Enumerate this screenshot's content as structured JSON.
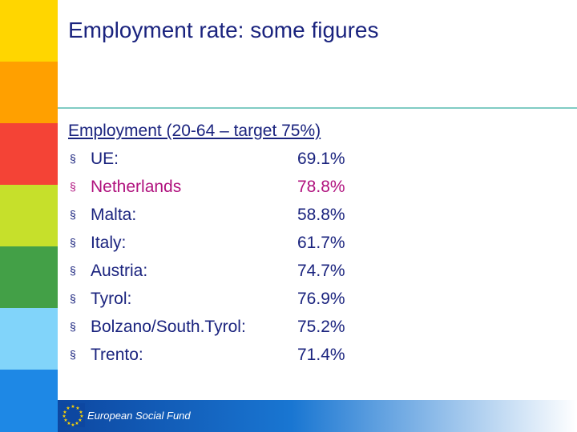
{
  "slide": {
    "title": "Employment rate: some figures",
    "heading": "Employment (20-64 – target 75%)",
    "bullet_glyph": "§",
    "items": [
      {
        "name": "UE:",
        "value": "69.1%",
        "highlight": false
      },
      {
        "name": "Netherlands",
        "value": "78.8%",
        "highlight": true
      },
      {
        "name": "Malta:",
        "value": "58.8%",
        "highlight": false
      },
      {
        "name": "Italy:",
        "value": "61.7%",
        "highlight": false
      },
      {
        "name": "Austria:",
        "value": "74.7%",
        "highlight": false
      },
      {
        "name": "Tyrol:",
        "value": "76.9%",
        "highlight": false
      },
      {
        "name": "Bolzano/South.Tyrol:",
        "value": "75.2%",
        "highlight": false
      },
      {
        "name": "Trento:",
        "value": "71.4%",
        "highlight": false
      }
    ]
  },
  "footer": {
    "label": "European Social Fund"
  },
  "colors": {
    "text": "#1a237e",
    "highlight": "#b0127e",
    "stripes": [
      "#ffd600",
      "#ffa000",
      "#f44336",
      "#c6e02b",
      "#43a047",
      "#81d4fa",
      "#1e88e5"
    ]
  }
}
